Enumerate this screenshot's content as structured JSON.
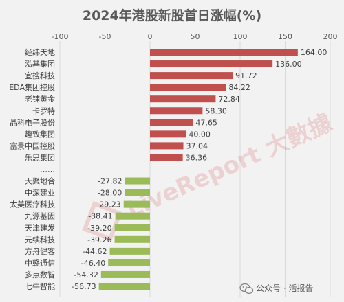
{
  "chart_data": {
    "type": "bar",
    "orientation": "horizontal",
    "title": "2024年港股新股首日涨幅(%)",
    "xlim": [
      -100,
      200
    ],
    "ticks": [
      -100,
      -50,
      0,
      50,
      100,
      150,
      200
    ],
    "tick_labels": [
      "-100",
      "-50",
      "0",
      "50",
      "100",
      "150",
      "200"
    ],
    "grid": true,
    "colors": {
      "positive": "#c0504d",
      "negative": "#9bbb59"
    },
    "categories": [
      "经纬天地",
      "泓基集团",
      "宜搜科技",
      "EDA集团控股",
      "老铺黄金",
      "卡罗特",
      "晶科电子股份",
      "趣致集团",
      "富景中国控股",
      "乐思集团",
      "……",
      "天聚地合",
      "中深建业",
      "太美医疗科技",
      "九源基因",
      "天津建发",
      "元续科技",
      "方舟健客",
      "中赣通信",
      "多点数智",
      "七牛智能"
    ],
    "values": [
      164.0,
      136.0,
      91.72,
      84.22,
      72.84,
      58.3,
      47.65,
      40.0,
      37.04,
      36.36,
      null,
      -27.82,
      -28.0,
      -29.23,
      -38.41,
      -39.2,
      -39.26,
      -44.62,
      -46.4,
      -54.32,
      -56.73
    ],
    "value_labels": [
      "164.00",
      "136.00",
      "91.72",
      "84.22",
      "72.84",
      "58.30",
      "47.65",
      "40.00",
      "37.04",
      "36.36",
      "",
      "-27.82",
      "-28.00",
      "-29.23",
      "-38.41",
      "-39.20",
      "-39.26",
      "-44.62",
      "-46.40",
      "-54.32",
      "-56.73"
    ]
  },
  "footer": {
    "source_text": "公众号 · 活报告"
  },
  "watermark": {
    "text": "LiveReport 大數據"
  }
}
